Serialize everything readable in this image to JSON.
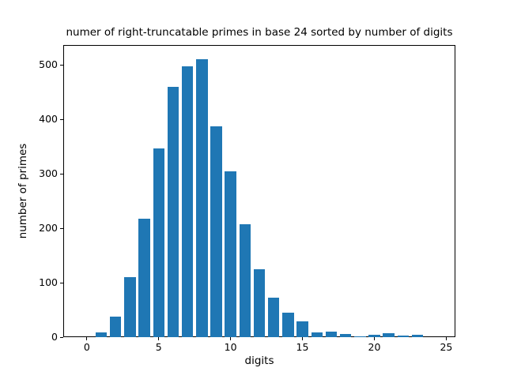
{
  "title": "numer of right-truncatable primes in base 24 sorted by number of digits",
  "chart_data": {
    "type": "bar",
    "title": "numer of right-truncatable primes in base 24 sorted by number of digits",
    "xlabel": "digits",
    "ylabel": "number of primes",
    "categories": [
      1,
      2,
      3,
      4,
      5,
      6,
      7,
      8,
      9,
      10,
      11,
      12,
      13,
      14,
      15,
      16,
      17,
      18,
      19,
      20,
      21,
      22,
      23
    ],
    "values": [
      9,
      38,
      110,
      218,
      347,
      459,
      498,
      510,
      387,
      304,
      208,
      125,
      73,
      45,
      29,
      9,
      10,
      6,
      2,
      5,
      7,
      3,
      4
    ],
    "bar_color": "#1f77b4",
    "bar_width": 0.8,
    "xlim": [
      -1.64,
      25.64
    ],
    "ylim": [
      0,
      535.5
    ],
    "xticks": [
      0,
      5,
      10,
      15,
      20,
      25
    ],
    "yticks": [
      0,
      100,
      200,
      300,
      400,
      500
    ],
    "grid": false,
    "legend": null
  }
}
